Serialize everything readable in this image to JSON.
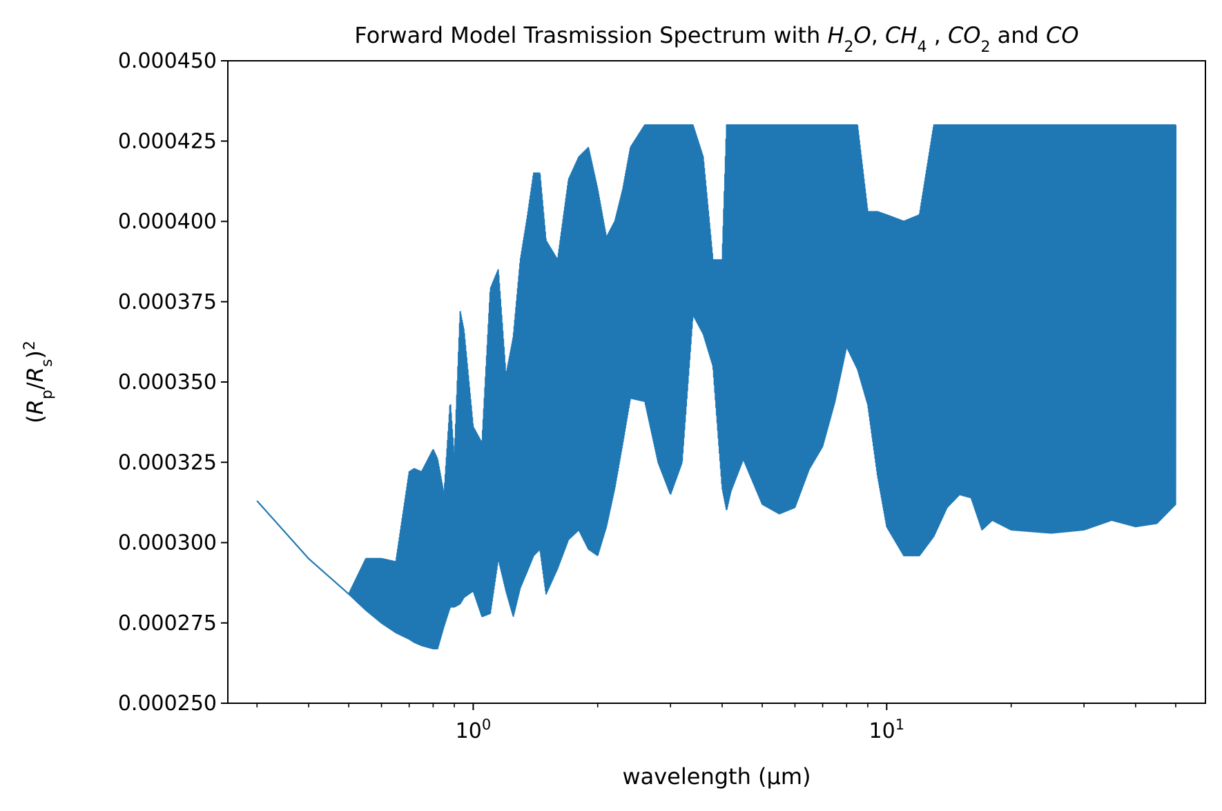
{
  "chart_data": {
    "type": "line",
    "title_parts": [
      {
        "text": "Forward Model Trasmission Spectrum with ",
        "italic": false
      },
      {
        "text": "H",
        "italic": true
      },
      {
        "text": "2",
        "sub": true
      },
      {
        "text": "O",
        "italic": true
      },
      {
        "text": ", ",
        "italic": false
      },
      {
        "text": "CH",
        "italic": true
      },
      {
        "text": "4",
        "sub": true
      },
      {
        "text": " , ",
        "italic": false
      },
      {
        "text": "CO",
        "italic": true
      },
      {
        "text": "2",
        "sub": true
      },
      {
        "text": " and ",
        "italic": false
      },
      {
        "text": "CO",
        "italic": true
      }
    ],
    "xlabel": "wavelength (μm)",
    "ylabel_parts": [
      {
        "text": "(",
        "italic": false
      },
      {
        "text": "R",
        "italic": true
      },
      {
        "text": "p",
        "sub": true
      },
      {
        "text": "/",
        "italic": false
      },
      {
        "text": "R",
        "italic": true
      },
      {
        "text": "s",
        "sub": true
      },
      {
        "text": ")",
        "italic": false
      },
      {
        "text": "2",
        "sup": true
      }
    ],
    "xscale": "log",
    "xlim": [
      0.255,
      59
    ],
    "ylim": [
      0.00025,
      0.00045
    ],
    "x_major_ticks": [
      {
        "value": 1,
        "base": "10",
        "exp": "0"
      },
      {
        "value": 10,
        "base": "10",
        "exp": "1"
      }
    ],
    "x_minor_ticks": [
      0.3,
      0.4,
      0.5,
      0.6,
      0.7,
      0.8,
      0.9,
      2,
      3,
      4,
      5,
      6,
      7,
      8,
      9,
      20,
      30,
      40,
      50
    ],
    "y_ticks": [
      0.00025,
      0.000275,
      0.0003,
      0.000325,
      0.00035,
      0.000375,
      0.0004,
      0.000425,
      0.00045
    ],
    "y_tick_labels": [
      "0.000250",
      "0.000275",
      "0.000300",
      "0.000325",
      "0.000350",
      "0.000375",
      "0.000400",
      "0.000425",
      "0.000450"
    ],
    "grid": false,
    "legend": "none",
    "series_color": "#1f77b4",
    "series": [
      {
        "label": "",
        "envelope_x": [
          0.3,
          0.4,
          0.5,
          0.55,
          0.6,
          0.65,
          0.7,
          0.72,
          0.75,
          0.8,
          0.82,
          0.85,
          0.88,
          0.9,
          0.93,
          0.95,
          1.0,
          1.05,
          1.1,
          1.15,
          1.2,
          1.25,
          1.3,
          1.35,
          1.4,
          1.45,
          1.5,
          1.6,
          1.7,
          1.8,
          1.9,
          2.0,
          2.1,
          2.2,
          2.3,
          2.4,
          2.6,
          2.8,
          3.0,
          3.2,
          3.4,
          3.6,
          3.8,
          4.0,
          4.1,
          4.2,
          4.5,
          5.0,
          5.5,
          6.0,
          6.5,
          7.0,
          7.5,
          8.0,
          8.5,
          9.0,
          9.5,
          10.0,
          11.0,
          12.0,
          13.0,
          14.0,
          15.0,
          16.0,
          17.0,
          18.0,
          20.0,
          25.0,
          30.0,
          35.0,
          40.0,
          45.0,
          50.0
        ],
        "max": [
          0.000313,
          0.000295,
          0.000284,
          0.000295,
          0.000295,
          0.000294,
          0.000322,
          0.000323,
          0.000322,
          0.000329,
          0.000326,
          0.000315,
          0.000344,
          0.000326,
          0.000372,
          0.000366,
          0.000336,
          0.000331,
          0.000379,
          0.000385,
          0.000352,
          0.000364,
          0.000388,
          0.000401,
          0.000415,
          0.000415,
          0.000394,
          0.000388,
          0.000413,
          0.00042,
          0.000423,
          0.00041,
          0.000395,
          0.0004,
          0.00041,
          0.000423,
          0.00043,
          0.00043,
          0.00043,
          0.00043,
          0.00043,
          0.00042,
          0.000388,
          0.000388,
          0.00043,
          0.00043,
          0.00043,
          0.00043,
          0.00043,
          0.00043,
          0.00043,
          0.00043,
          0.00043,
          0.00043,
          0.00043,
          0.000403,
          0.000403,
          0.000402,
          0.0004,
          0.000402,
          0.00043,
          0.00043,
          0.00043,
          0.00043,
          0.00043,
          0.00043,
          0.00043,
          0.00043,
          0.00043,
          0.00043,
          0.00043,
          0.00043,
          0.00043
        ],
        "min": [
          0.000313,
          0.000295,
          0.000284,
          0.000279,
          0.000275,
          0.000272,
          0.00027,
          0.000269,
          0.000268,
          0.000267,
          0.000267,
          0.000274,
          0.00028,
          0.00028,
          0.000281,
          0.000283,
          0.000285,
          0.000277,
          0.000278,
          0.000295,
          0.000285,
          0.000277,
          0.000286,
          0.000291,
          0.000296,
          0.000298,
          0.000284,
          0.000292,
          0.000301,
          0.000304,
          0.000298,
          0.000296,
          0.000305,
          0.000317,
          0.000331,
          0.000345,
          0.000344,
          0.000325,
          0.000315,
          0.000325,
          0.000371,
          0.000365,
          0.000355,
          0.000317,
          0.00031,
          0.000316,
          0.000326,
          0.000312,
          0.000309,
          0.000311,
          0.000323,
          0.00033,
          0.000344,
          0.000361,
          0.000354,
          0.000343,
          0.000321,
          0.000305,
          0.000296,
          0.000296,
          0.000302,
          0.000311,
          0.000315,
          0.000314,
          0.000304,
          0.000307,
          0.000304,
          0.000303,
          0.000304,
          0.000307,
          0.000305,
          0.000306,
          0.000312
        ]
      }
    ]
  }
}
